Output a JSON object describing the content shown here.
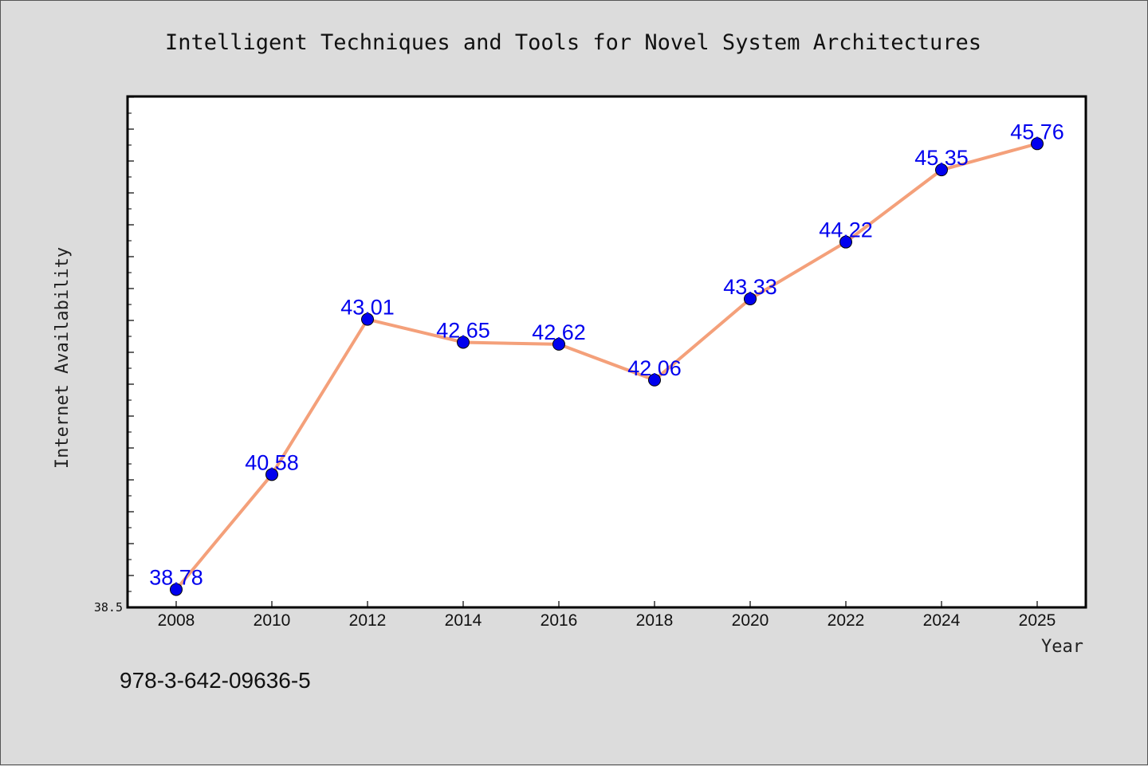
{
  "chart_data": {
    "type": "line",
    "title": "Intelligent Techniques and Tools for Novel System Architectures",
    "xlabel": "Year",
    "ylabel": "Internet Availability",
    "categories": [
      "2008",
      "2010",
      "2012",
      "2014",
      "2016",
      "2018",
      "2020",
      "2022",
      "2024",
      "2025"
    ],
    "series": [
      {
        "values": [
          38.78,
          40.58,
          43.01,
          42.65,
          42.62,
          42.06,
          43.33,
          44.22,
          45.35,
          45.76
        ],
        "labels": [
          "38.78",
          "40.58",
          "43.01",
          "42.65",
          "42.62",
          "42.06",
          "43.33",
          "44.22",
          "45.35",
          "45.76"
        ]
      }
    ],
    "ylim": [
      38.5,
      46.5
    ],
    "ytick_labels": [
      "38.5"
    ],
    "grid": false,
    "legend": "none",
    "colors": {
      "line": "#f4a07a",
      "marker": "#0000ee",
      "data_label": "#0000ee",
      "background": "#dcdcdc",
      "plot_area": "#ffffff"
    }
  },
  "footer": {
    "isbn": "978-3-642-09636-5"
  }
}
